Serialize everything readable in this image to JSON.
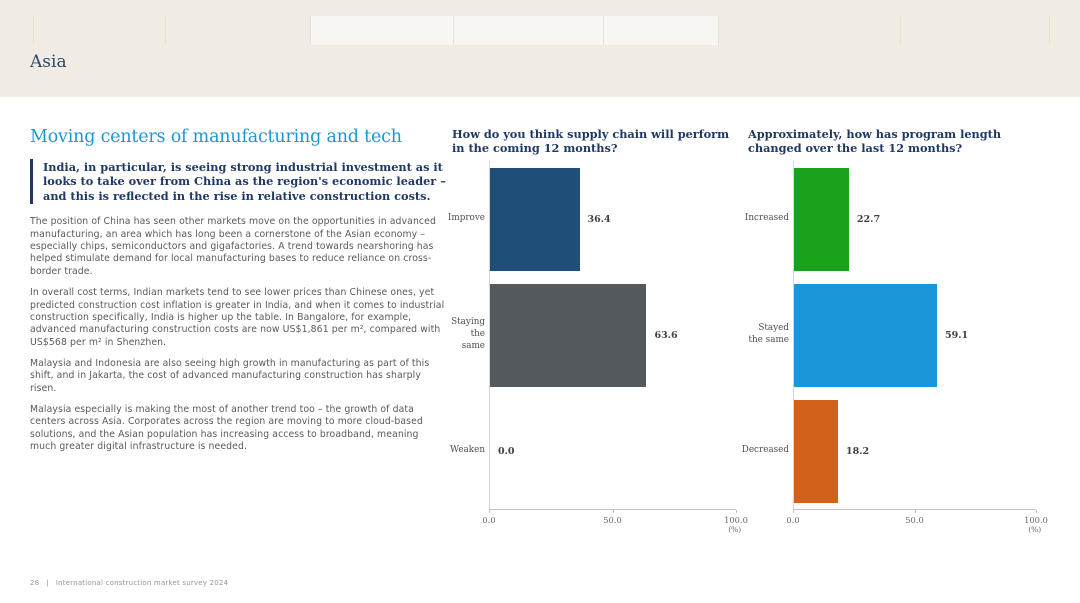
{
  "page": {
    "section_title": "Asia",
    "header_background": "#f0ece4"
  },
  "article": {
    "heading": "Moving centers of manufacturing and tech",
    "callout": "India, in particular, is seeing strong industrial investment as it looks to take over from China as the region's economic leader – and this is reflected in the rise in relative construction costs.",
    "paragraphs": [
      "The position of China has seen other markets move on the opportunities in advanced manufacturing, an area which has long been a cornerstone of the Asian economy – especially chips, semiconductors and gigafactories. A trend towards nearshoring has helped stimulate demand for local manufacturing bases to reduce reliance on cross-border trade.",
      "In overall cost terms, Indian markets tend to see lower prices than Chinese ones, yet predicted construction cost inflation is greater in India, and when it comes to industrial construction specifically, India is higher up the table. In Bangalore, for example, advanced manufacturing construction costs are now US$1,861 per m², compared with US$568 per m² in Shenzhen.",
      "Malaysia and Indonesia are also seeing high growth in manufacturing as part of this shift, and in Jakarta, the cost of advanced manufacturing construction has sharply risen.",
      "Malaysia especially is making the most of another trend too – the growth of data centers across Asia. Corporates across the region are moving to more cloud-based solutions, and the Asian population has increasing access to broadband, meaning much greater digital infrastructure is needed."
    ]
  },
  "charts": [
    {
      "title": "How do you think supply chain will perform  in the coming 12 months?",
      "chart_data": {
        "type": "bar",
        "orientation": "horizontal",
        "categories": [
          "Improve",
          "Staying the same",
          "Weaken"
        ],
        "values": [
          36.4,
          63.6,
          0.0
        ],
        "labels": [
          "36.4",
          "63.6",
          "0.0"
        ],
        "colors": [
          "#1f4e79",
          "#54595e",
          "#54595e"
        ],
        "xlim": [
          0,
          100
        ],
        "ticks": [
          "0.0",
          "50.0",
          "100.0"
        ],
        "xlabel": "(%)",
        "grid": false,
        "legend": false
      }
    },
    {
      "title": "Approximately, how has program length changed over the last 12 months?",
      "chart_data": {
        "type": "bar",
        "orientation": "horizontal",
        "categories": [
          "Increased",
          "Stayed the same",
          "Decreased"
        ],
        "values": [
          22.7,
          59.1,
          18.2
        ],
        "labels": [
          "22.7",
          "59.1",
          "18.2"
        ],
        "colors": [
          "#1aa21d",
          "#1b96d8",
          "#d2611c"
        ],
        "xlim": [
          0,
          100
        ],
        "ticks": [
          "0.0",
          "50.0",
          "100.0"
        ],
        "xlabel": "(%)",
        "grid": false,
        "legend": false
      }
    }
  ],
  "footer": {
    "page_number": "28",
    "separator": "|",
    "text": "International construction market survey 2024"
  }
}
